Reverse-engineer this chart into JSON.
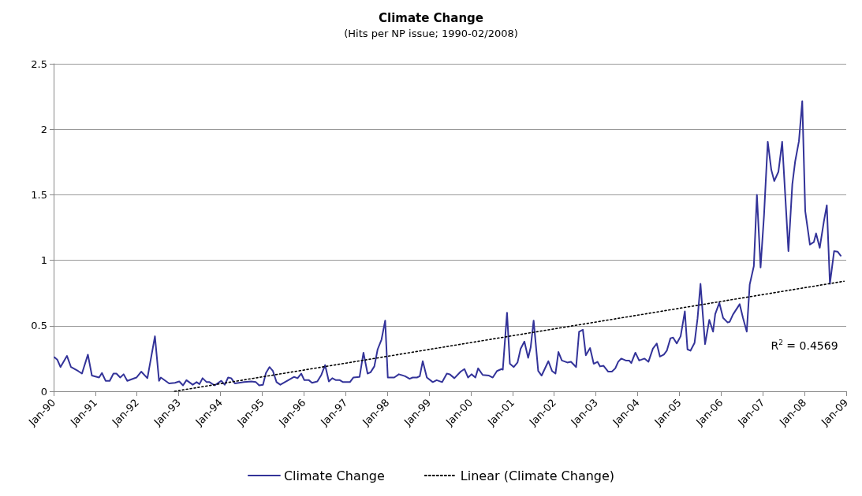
{
  "chart_data": {
    "type": "line",
    "title": "Climate Change",
    "subtitle": "(Hits per NP issue; 1990-02/2008)",
    "series": [
      {
        "name": "Climate Change",
        "color": "#333399",
        "x": [
          "1990-01-08",
          "1990-02-03",
          "1990-03-02",
          "1990-04-28",
          "1990-06-02",
          "1990-08-03",
          "1990-09-06",
          "1990-10-28",
          "1990-12-02",
          "1991-02-03",
          "1991-02-28",
          "1991-04-01",
          "1991-05-07",
          "1991-06-09",
          "1991-07-05",
          "1991-08-07",
          "1991-09-06",
          "1991-10-08",
          "1991-12-27",
          "1992-02-07",
          "1992-04-01",
          "1992-06-06",
          "1992-07-12",
          "1992-07-28",
          "1992-10-08",
          "1992-11-28",
          "1993-01-05",
          "1993-02-07",
          "1993-03-09",
          "1993-05-03",
          "1993-06-06",
          "1993-07-01",
          "1993-07-28",
          "1993-09-02",
          "1993-09-27",
          "1993-11-11",
          "1994-01-08",
          "1994-02-07",
          "1994-03-09",
          "1994-04-05",
          "1994-05-07",
          "1994-07-26",
          "1994-09-27",
          "1994-11-07",
          "1994-12-06",
          "1995-01-08",
          "1995-02-03",
          "1995-03-06",
          "1995-04-05",
          "1995-05-07",
          "1995-06-09",
          "1995-08-18",
          "1995-10-08",
          "1995-11-07",
          "1995-12-09",
          "1996-01-05",
          "1996-02-14",
          "1996-03-13",
          "1996-04-28",
          "1996-06-02",
          "1996-07-05",
          "1996-08-07",
          "1996-09-06",
          "1996-10-08",
          "1996-11-11",
          "1996-12-09",
          "1997-02-07",
          "1997-03-09",
          "1997-05-03",
          "1997-06-06",
          "1997-07-12",
          "1997-08-07",
          "1997-09-09",
          "1997-10-08",
          "1997-11-11",
          "1997-12-13",
          "1998-01-05",
          "1998-03-02",
          "1998-04-12",
          "1998-06-06",
          "1998-07-15",
          "1998-08-11",
          "1998-09-17",
          "1998-10-12",
          "1998-11-07",
          "1998-12-13",
          "1999-02-03",
          "1999-03-09",
          "1999-04-26",
          "1999-06-06",
          "1999-07-01",
          "1999-08-11",
          "1999-10-05",
          "1999-11-07",
          "1999-12-09",
          "2000-01-08",
          "2000-02-11",
          "2000-03-06",
          "2000-04-15",
          "2000-06-09",
          "2000-07-12",
          "2000-08-18",
          "2000-09-27",
          "2000-10-08",
          "2000-11-14",
          "2000-12-09",
          "2001-01-12",
          "2001-02-14",
          "2001-03-13",
          "2001-04-15",
          "2001-05-18",
          "2001-06-09",
          "2001-07-05",
          "2001-08-14",
          "2001-09-13",
          "2001-11-11",
          "2001-12-13",
          "2002-01-12",
          "2002-02-07",
          "2002-03-09",
          "2002-04-26",
          "2002-05-28",
          "2002-07-12",
          "2002-08-07",
          "2002-09-09",
          "2002-10-05",
          "2002-11-11",
          "2002-12-13",
          "2003-01-15",
          "2003-02-07",
          "2003-03-09",
          "2003-04-19",
          "2003-05-21",
          "2003-06-20",
          "2003-07-15",
          "2003-08-11",
          "2003-09-20",
          "2003-10-19",
          "2003-11-07",
          "2003-12-13",
          "2004-01-15",
          "2004-03-02",
          "2004-04-05",
          "2004-05-14",
          "2004-06-17",
          "2004-07-15",
          "2004-08-18",
          "2004-09-13",
          "2004-10-15",
          "2004-11-07",
          "2004-12-09",
          "2005-01-12",
          "2005-02-18",
          "2005-03-13",
          "2005-04-08",
          "2005-05-14",
          "2005-06-09",
          "2005-07-05",
          "2005-08-14",
          "2005-09-20",
          "2005-10-23",
          "2005-11-11",
          "2005-12-17",
          "2006-01-19",
          "2006-02-28",
          "2006-03-17",
          "2006-04-15",
          "2006-06-13",
          "2006-07-12",
          "2006-08-14",
          "2006-09-09",
          "2006-10-15",
          "2006-11-11",
          "2006-12-13",
          "2007-01-12",
          "2007-02-14",
          "2007-03-17",
          "2007-04-12",
          "2007-05-18",
          "2007-06-20",
          "2007-08-14",
          "2007-09-17",
          "2007-10-12",
          "2007-11-14",
          "2007-12-13",
          "2008-01-08",
          "2008-02-18",
          "2008-03-24",
          "2008-04-12",
          "2008-05-14",
          "2008-06-20",
          "2008-07-15",
          "2008-08-11",
          "2008-09-17",
          "2008-10-19",
          "2008-11-14"
        ],
        "values": [
          0.26,
          0.24,
          0.185,
          0.27,
          0.185,
          0.155,
          0.135,
          0.28,
          0.12,
          0.105,
          0.14,
          0.08,
          0.08,
          0.135,
          0.135,
          0.105,
          0.13,
          0.08,
          0.105,
          0.15,
          0.1,
          0.42,
          0.08,
          0.105,
          0.06,
          0.065,
          0.075,
          0.045,
          0.085,
          0.05,
          0.07,
          0.055,
          0.1,
          0.07,
          0.07,
          0.045,
          0.08,
          0.05,
          0.105,
          0.1,
          0.06,
          0.07,
          0.075,
          0.07,
          0.045,
          0.05,
          0.14,
          0.185,
          0.155,
          0.07,
          0.05,
          0.085,
          0.11,
          0.1,
          0.135,
          0.085,
          0.085,
          0.065,
          0.075,
          0.125,
          0.2,
          0.075,
          0.1,
          0.085,
          0.085,
          0.07,
          0.07,
          0.105,
          0.11,
          0.295,
          0.135,
          0.145,
          0.19,
          0.32,
          0.395,
          0.54,
          0.105,
          0.105,
          0.13,
          0.115,
          0.095,
          0.105,
          0.105,
          0.115,
          0.23,
          0.105,
          0.07,
          0.085,
          0.07,
          0.135,
          0.13,
          0.1,
          0.15,
          0.17,
          0.105,
          0.13,
          0.105,
          0.175,
          0.125,
          0.12,
          0.105,
          0.155,
          0.17,
          0.165,
          0.6,
          0.21,
          0.185,
          0.22,
          0.325,
          0.38,
          0.255,
          0.335,
          0.54,
          0.155,
          0.12,
          0.23,
          0.155,
          0.135,
          0.3,
          0.235,
          0.22,
          0.225,
          0.185,
          0.455,
          0.47,
          0.275,
          0.33,
          0.21,
          0.225,
          0.19,
          0.195,
          0.15,
          0.15,
          0.175,
          0.225,
          0.25,
          0.235,
          0.235,
          0.215,
          0.295,
          0.235,
          0.25,
          0.225,
          0.325,
          0.365,
          0.265,
          0.28,
          0.31,
          0.405,
          0.41,
          0.365,
          0.42,
          0.61,
          0.32,
          0.31,
          0.37,
          0.555,
          0.82,
          0.36,
          0.545,
          0.455,
          0.59,
          0.675,
          0.56,
          0.525,
          0.53,
          0.585,
          0.665,
          0.56,
          0.455,
          0.815,
          0.955,
          1.5,
          0.945,
          1.34,
          1.905,
          1.69,
          1.605,
          1.675,
          1.905,
          1.07,
          1.58,
          1.755,
          1.91,
          2.215,
          1.375,
          1.12,
          1.14,
          1.205,
          1.095,
          1.3,
          1.42,
          0.82,
          1.07,
          1.065,
          1.035
        ]
      },
      {
        "name": "Linear (Climate Change)",
        "color": "#000000",
        "line_style": "dotted",
        "x": [
          "1992-11-25",
          "2008-12-13"
        ],
        "values": [
          0,
          0.84
        ]
      }
    ],
    "annotations": [
      "R$^{2}$ = 0.4569"
    ],
    "xlim": [
      "1990-01",
      "2009-01"
    ],
    "xticks": [
      {
        "value": "1990-01",
        "label": "Jan-90"
      },
      {
        "value": "1991-01",
        "label": "Jan-91"
      },
      {
        "value": "1992-01",
        "label": "Jan-92"
      },
      {
        "value": "1993-01",
        "label": "Jan-93"
      },
      {
        "value": "1994-01",
        "label": "Jan-94"
      },
      {
        "value": "1995-01",
        "label": "Jan-95"
      },
      {
        "value": "1996-01",
        "label": "Jan-96"
      },
      {
        "value": "1997-01",
        "label": "Jan-97"
      },
      {
        "value": "1998-01",
        "label": "Jan-98"
      },
      {
        "value": "1999-01",
        "label": "Jan-99"
      },
      {
        "value": "2000-01",
        "label": "Jan-00"
      },
      {
        "value": "2001-01",
        "label": "Jan-01"
      },
      {
        "value": "2002-01",
        "label": "Jan-02"
      },
      {
        "value": "2003-01",
        "label": "Jan-03"
      },
      {
        "value": "2004-01",
        "label": "Jan-04"
      },
      {
        "value": "2005-01",
        "label": "Jan-05"
      },
      {
        "value": "2006-01",
        "label": "Jan-06"
      },
      {
        "value": "2007-01",
        "label": "Jan-07"
      },
      {
        "value": "2008-01",
        "label": "Jan-08"
      },
      {
        "value": "2009-01",
        "label": "Jan-09"
      }
    ],
    "ylim": [
      0,
      2.5
    ],
    "yticks": [
      0,
      0.5,
      1,
      1.5,
      2,
      2.5
    ],
    "grid": "y",
    "legend": "bottom",
    "marker": "none",
    "line_style": "solid"
  }
}
